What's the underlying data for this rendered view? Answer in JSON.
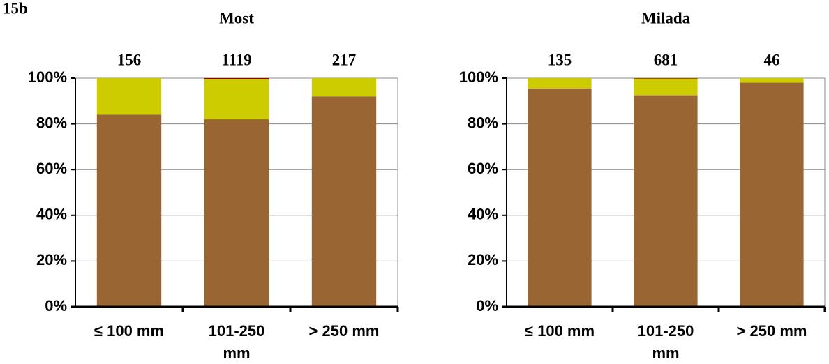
{
  "figure_label": "15b",
  "chart_data": [
    {
      "type": "stacked_bar",
      "title": "Most",
      "categories": [
        "≤ 100 mm",
        "101-250 mm",
        "> 250 mm"
      ],
      "annotations": [
        156,
        1119,
        217
      ],
      "series": [
        {
          "color": "#996633",
          "values": [
            84,
            82,
            92
          ]
        },
        {
          "color": "#cccc00",
          "values": [
            16,
            17.5,
            8
          ]
        },
        {
          "color": "#990000",
          "values": [
            0,
            0.5,
            0
          ]
        }
      ],
      "ylim": [
        0,
        100
      ],
      "yticks": [
        {
          "value": 0,
          "label": "0%"
        },
        {
          "value": 20,
          "label": "20%"
        },
        {
          "value": 40,
          "label": "40%"
        },
        {
          "value": 60,
          "label": "60%"
        },
        {
          "value": 80,
          "label": "80%"
        },
        {
          "value": 100,
          "label": "100%"
        }
      ],
      "grid": true
    },
    {
      "type": "stacked_bar",
      "title": "Milada",
      "categories": [
        "≤ 100 mm",
        "101-250 mm",
        "> 250 mm"
      ],
      "annotations": [
        135,
        681,
        46
      ],
      "series": [
        {
          "color": "#996633",
          "values": [
            95.5,
            92.5,
            98
          ]
        },
        {
          "color": "#cccc00",
          "values": [
            4.5,
            7.3,
            2
          ]
        },
        {
          "color": "#990000",
          "values": [
            0,
            0.2,
            0
          ]
        }
      ],
      "ylim": [
        0,
        100
      ],
      "yticks": [
        {
          "value": 0,
          "label": "0%"
        },
        {
          "value": 20,
          "label": "20%"
        },
        {
          "value": 40,
          "label": "40%"
        },
        {
          "value": 60,
          "label": "60%"
        },
        {
          "value": 80,
          "label": "80%"
        },
        {
          "value": 100,
          "label": "100%"
        }
      ],
      "grid": true
    }
  ]
}
